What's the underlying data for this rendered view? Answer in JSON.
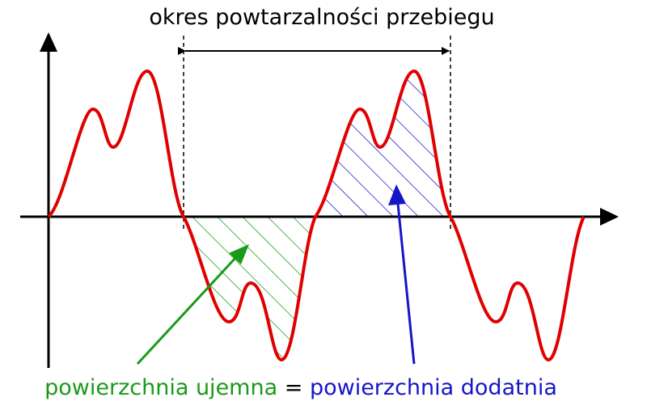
{
  "title": "okres powtarzalności przebiegu",
  "caption": {
    "negative": "powierzchnia ujemna",
    "equals": "=",
    "positive": "powierzchnia dodatnia"
  }
}
